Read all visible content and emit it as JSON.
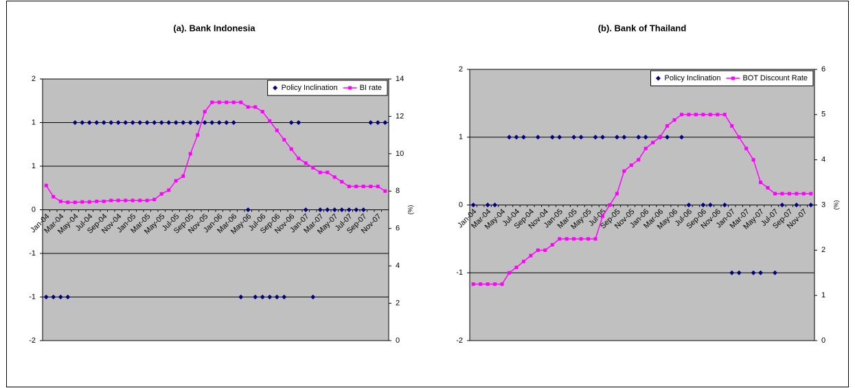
{
  "chart_data": [
    {
      "type": "combo",
      "title": "(a). Bank Indonesia",
      "categories": [
        "Jan-04",
        null,
        "Mar-04",
        null,
        "May-04",
        null,
        "Jul-04",
        null,
        "Sep-04",
        null,
        "Nov-04",
        null,
        "Jan-05",
        null,
        "Mar-05",
        null,
        "May-05",
        null,
        "Jul-05",
        null,
        "Sep-05",
        null,
        "Nov-05",
        null,
        "Jan-06",
        null,
        "Mar-06",
        null,
        "May-06",
        null,
        "Jul-06",
        null,
        "Sep-06",
        null,
        "Nov-06",
        null,
        "Jan-07",
        null,
        "Mar-07",
        null,
        "May-07",
        null,
        "Jul-07",
        null,
        "Sep-07",
        null,
        "Nov-07",
        null
      ],
      "ylim": [
        -1.5,
        1.5
      ],
      "yticks": [
        {
          "value": 1.5,
          "label": "2"
        },
        1,
        {
          "value": 0.5,
          "label": "1"
        },
        0,
        {
          "value": -0.5,
          "label": "-1"
        },
        -1,
        {
          "value": -1.5,
          "label": "-2"
        }
      ],
      "y2lim": [
        0,
        14
      ],
      "y2ticks": [
        0,
        2,
        4,
        6,
        8,
        10,
        12,
        14
      ],
      "y2label": "(%)",
      "grid": true,
      "legend": "upper right",
      "series": [
        {
          "name": "Policy Inclination",
          "type": "scatter",
          "color": "#000080",
          "values": [
            -1,
            -1,
            -1,
            -1,
            1,
            1,
            1,
            1,
            1,
            1,
            1,
            1,
            1,
            1,
            1,
            1,
            1,
            1,
            1,
            1,
            1,
            1,
            1,
            1,
            1,
            1,
            1,
            -1,
            0,
            -1,
            -1,
            -1,
            -1,
            -1,
            1,
            1,
            0,
            -1,
            0,
            0,
            0,
            0,
            0,
            0,
            0,
            1,
            1,
            1
          ]
        },
        {
          "name": "BI rate",
          "type": "line",
          "color": "#ff00ff",
          "axis": "y2",
          "values": [
            8.3,
            7.7,
            7.45,
            7.4,
            7.4,
            7.42,
            7.42,
            7.45,
            7.45,
            7.5,
            7.5,
            7.5,
            7.5,
            7.5,
            7.5,
            7.55,
            7.85,
            8.05,
            8.55,
            8.8,
            10.0,
            11.0,
            12.25,
            12.75,
            12.75,
            12.75,
            12.75,
            12.75,
            12.5,
            12.5,
            12.25,
            11.75,
            11.25,
            10.75,
            10.25,
            9.75,
            9.5,
            9.25,
            9.0,
            9.0,
            8.75,
            8.5,
            8.25,
            8.25,
            8.25,
            8.25,
            8.25,
            8.0
          ]
        }
      ]
    },
    {
      "type": "combo",
      "title": "(b). Bank of Thailand",
      "categories": [
        "Jan-04",
        null,
        "Mar-04",
        null,
        "May-04",
        null,
        "Jul-04",
        null,
        "Sep-04",
        null,
        "Nov-04",
        null,
        "Jan-05",
        null,
        "Mar-05",
        null,
        "May-05",
        null,
        "Jul-05",
        null,
        "Sep-05",
        null,
        "Nov-05",
        null,
        "Jan-06",
        null,
        "Mar-06",
        null,
        "May-06",
        null,
        "Jul-06",
        null,
        "Sep-06",
        null,
        "Nov-06",
        null,
        "Jan-07",
        null,
        "Mar-07",
        null,
        "May-07",
        null,
        "Jul-07",
        null,
        "Sep-07",
        null,
        "Nov-07",
        null
      ],
      "ylim": [
        -2,
        2
      ],
      "yticks": [
        2,
        1,
        0,
        -1,
        -2
      ],
      "y2lim": [
        0,
        6
      ],
      "y2ticks": [
        0,
        1,
        2,
        3,
        4,
        5,
        6
      ],
      "y2label": "(%)",
      "grid": true,
      "legend": "upper right",
      "series": [
        {
          "name": "Policy Inclination",
          "type": "scatter",
          "color": "#000080",
          "values": [
            0,
            null,
            0,
            0,
            null,
            1,
            1,
            1,
            null,
            1,
            null,
            1,
            1,
            null,
            1,
            1,
            null,
            1,
            1,
            null,
            1,
            1,
            null,
            1,
            1,
            null,
            1,
            1,
            null,
            1,
            0,
            null,
            0,
            0,
            null,
            0,
            -1,
            -1,
            null,
            -1,
            -1,
            null,
            -1,
            0,
            null,
            0,
            null,
            0
          ]
        },
        {
          "name": "BOT Discount Rate",
          "type": "line",
          "color": "#ff00ff",
          "axis": "y2",
          "values": [
            1.25,
            1.25,
            1.25,
            1.25,
            1.25,
            1.5,
            1.62,
            1.75,
            1.88,
            2.0,
            2.0,
            2.12,
            2.25,
            2.25,
            2.25,
            2.25,
            2.25,
            2.25,
            2.75,
            3.0,
            3.25,
            3.75,
            3.88,
            4.0,
            4.25,
            4.38,
            4.5,
            4.75,
            4.88,
            5.0,
            5.0,
            5.0,
            5.0,
            5.0,
            5.0,
            5.0,
            4.75,
            4.5,
            4.25,
            4.0,
            3.5,
            3.38,
            3.25,
            3.25,
            3.25,
            3.25,
            3.25,
            3.25
          ]
        }
      ]
    }
  ]
}
